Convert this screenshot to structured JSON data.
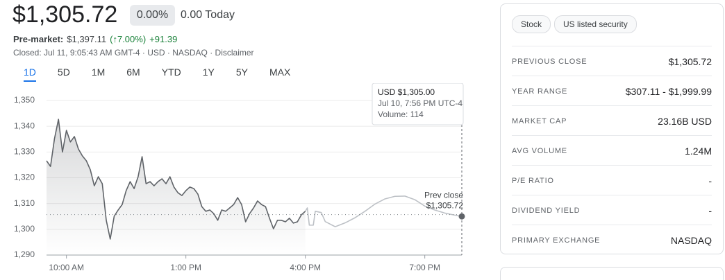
{
  "header": {
    "price": "$1,305.72",
    "change_percent": "0.00%",
    "change_today": "0.00 Today",
    "premarket_label": "Pre-market:",
    "premarket_price": "$1,397.11",
    "premarket_percent": "(↑7.00%)",
    "premarket_change": "+91.39",
    "closed_note": "Closed: Jul 11, 9:05:43 AM GMT-4 · USD · NASDAQ · Disclaimer"
  },
  "tabs": [
    "1D",
    "5D",
    "1M",
    "6M",
    "YTD",
    "1Y",
    "5Y",
    "MAX"
  ],
  "chart_data": {
    "type": "line",
    "xlim": [
      9.5,
      19.93
    ],
    "ylim": [
      1290,
      1350
    ],
    "yticks": [
      {
        "value": 1290,
        "label": "1,290"
      },
      {
        "value": 1300,
        "label": "1,300"
      },
      {
        "value": 1310,
        "label": "1,310"
      },
      {
        "value": 1320,
        "label": "1,320"
      },
      {
        "value": 1330,
        "label": "1,330"
      },
      {
        "value": 1340,
        "label": "1,340"
      },
      {
        "value": 1350,
        "label": "1,350"
      }
    ],
    "xticks": [
      {
        "value": 10,
        "label": "10:00 AM"
      },
      {
        "value": 13,
        "label": "1:00 PM"
      },
      {
        "value": 16,
        "label": "4:00 PM"
      },
      {
        "value": 19,
        "label": "7:00 PM"
      }
    ],
    "grid": true,
    "series": [
      {
        "color": "#5f6368",
        "fill": true,
        "x": [
          9.5,
          9.6,
          9.7,
          9.8,
          9.9,
          10.0,
          10.1,
          10.2,
          10.3,
          10.4,
          10.5,
          10.6,
          10.7,
          10.8,
          10.9,
          11.0,
          11.1,
          11.2,
          11.3,
          11.4,
          11.5,
          11.6,
          11.7,
          11.8,
          11.9,
          12.0,
          12.1,
          12.2,
          12.3,
          12.4,
          12.5,
          12.6,
          12.7,
          12.8,
          12.9,
          13.0,
          13.1,
          13.2,
          13.3,
          13.4,
          13.5,
          13.6,
          13.7,
          13.8,
          13.9,
          14.0,
          14.1,
          14.2,
          14.3,
          14.4,
          14.5,
          14.6,
          14.7,
          14.8,
          14.9,
          15.0,
          15.1,
          15.2,
          15.3,
          15.4,
          15.5,
          15.6,
          15.7,
          15.8,
          15.9,
          16.0
        ],
        "values": [
          1326.6,
          1324.4,
          1335.2,
          1342.7,
          1330.0,
          1338.4,
          1333.9,
          1336.0,
          1331.2,
          1328.5,
          1326.6,
          1323.1,
          1316.9,
          1320.4,
          1317.7,
          1303.5,
          1296.2,
          1305.1,
          1307.5,
          1309.6,
          1315.0,
          1318.5,
          1315.8,
          1320.4,
          1328.2,
          1317.7,
          1318.5,
          1316.9,
          1318.5,
          1319.6,
          1317.7,
          1320.4,
          1316.4,
          1314.2,
          1313.1,
          1315.0,
          1316.4,
          1315.8,
          1313.7,
          1308.8,
          1307.0,
          1307.5,
          1306.1,
          1303.5,
          1307.5,
          1307.0,
          1308.3,
          1309.6,
          1312.3,
          1309.6,
          1302.9,
          1306.1,
          1308.3,
          1311.0,
          1309.6,
          1308.8,
          1304.3,
          1300.2,
          1303.5,
          1303.5,
          1302.9,
          1304.3,
          1302.4,
          1302.9,
          1305.6,
          1307.0
        ]
      },
      {
        "color": "#bdc1c6",
        "fill": false,
        "x": [
          16.0,
          16.05,
          16.1,
          16.2,
          16.25,
          16.4,
          16.5,
          16.75,
          17.0,
          17.25,
          17.5,
          17.75,
          18.0,
          18.25,
          18.5,
          18.75,
          19.0,
          19.25,
          19.5,
          19.75,
          19.93
        ],
        "values": [
          1307.0,
          1308.3,
          1301.6,
          1301.6,
          1307.0,
          1306.5,
          1303.0,
          1301.0,
          1302.5,
          1304.5,
          1307.0,
          1309.8,
          1311.8,
          1312.8,
          1312.9,
          1311.5,
          1309.0,
          1307.5,
          1306.3,
          1305.5,
          1305.0
        ]
      }
    ],
    "reference_line": {
      "value": 1305.72,
      "label": "Prev close",
      "value_label": "$1,305.72"
    },
    "tooltip": [
      "USD $1,305.00",
      "Jul 10, 7:56 PM UTC-4",
      "Volume: 114"
    ]
  },
  "stats": {
    "tags": [
      "Stock",
      "US listed security"
    ],
    "rows": [
      [
        "PREVIOUS CLOSE",
        "$1,305.72"
      ],
      [
        "YEAR RANGE",
        "$307.11 - $1,999.99"
      ],
      [
        "MARKET CAP",
        "23.16B USD"
      ],
      [
        "AVG VOLUME",
        "1.24M"
      ],
      [
        "P/E RATIO",
        "-"
      ],
      [
        "DIVIDEND YIELD",
        "-"
      ],
      [
        "PRIMARY EXCHANGE",
        "NASDAQ"
      ]
    ]
  }
}
